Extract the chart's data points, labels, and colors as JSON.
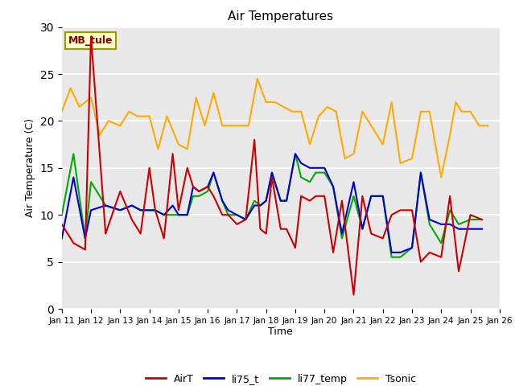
{
  "title": "Air Temperatures",
  "xlabel": "Time",
  "ylabel": "Air Temperature (C)",
  "ylim": [
    0,
    30
  ],
  "yticks": [
    0,
    5,
    10,
    15,
    20,
    25,
    30
  ],
  "annotation": "MB_tule",
  "bg_color": "#e8e8e8",
  "legend_entries": [
    "AirT",
    "li75_t",
    "li77_temp",
    "Tsonic"
  ],
  "legend_colors": [
    "#cc0000",
    "#0000cc",
    "#00aa00",
    "#ffaa00"
  ],
  "x_tick_pos": [
    11,
    12,
    13,
    14,
    15,
    16,
    17,
    18,
    19,
    20,
    21,
    22,
    23,
    24,
    25,
    26
  ],
  "x_labels": [
    "Jan 11",
    "Jan 12",
    "Jan 13",
    "Jan 14",
    "Jan 15",
    "Jan 16",
    "Jan 17",
    "Jan 18",
    "Jan 19",
    "Jan 20",
    "Jan 21",
    "Jan 22",
    "Jan 23",
    "Jan 24",
    "Jan 25",
    "Jan 26"
  ],
  "airt_x": [
    11.0,
    11.4,
    11.8,
    12.0,
    12.5,
    13.0,
    13.4,
    13.7,
    14.0,
    14.2,
    14.5,
    14.8,
    15.0,
    15.3,
    15.5,
    15.7,
    16.0,
    16.2,
    16.5,
    16.7,
    17.0,
    17.3,
    17.6,
    17.8,
    18.0,
    18.2,
    18.5,
    18.7,
    19.0,
    19.2,
    19.5,
    19.7,
    20.0,
    20.3,
    20.6,
    21.0,
    21.3,
    21.6,
    22.0,
    22.3,
    22.6,
    23.0,
    23.3,
    23.6,
    24.0,
    24.3,
    24.6,
    25.0,
    25.4
  ],
  "airt_y": [
    9.0,
    7.0,
    6.3,
    29.0,
    8.0,
    12.5,
    9.5,
    8.0,
    15.0,
    10.5,
    7.5,
    16.5,
    10.5,
    15.0,
    13.0,
    12.5,
    13.0,
    12.0,
    10.0,
    10.0,
    9.0,
    9.5,
    18.0,
    8.5,
    8.0,
    14.0,
    8.5,
    8.5,
    6.5,
    12.0,
    11.5,
    12.0,
    12.0,
    6.0,
    11.5,
    1.5,
    12.0,
    8.0,
    7.5,
    10.0,
    10.5,
    10.5,
    5.0,
    6.0,
    5.5,
    12.0,
    4.0,
    10.0,
    9.5
  ],
  "li75_x": [
    11.0,
    11.4,
    11.8,
    12.0,
    12.5,
    13.0,
    13.4,
    13.7,
    14.0,
    14.2,
    14.5,
    14.8,
    15.0,
    15.3,
    15.5,
    15.7,
    16.0,
    16.2,
    16.5,
    16.7,
    17.0,
    17.3,
    17.6,
    17.8,
    18.0,
    18.2,
    18.5,
    18.7,
    19.0,
    19.2,
    19.5,
    19.7,
    20.0,
    20.3,
    20.6,
    21.0,
    21.3,
    21.6,
    22.0,
    22.3,
    22.6,
    23.0,
    23.3,
    23.6,
    24.0,
    24.3,
    24.6,
    25.0,
    25.4
  ],
  "li75_y": [
    7.5,
    14.0,
    7.5,
    10.5,
    11.0,
    10.5,
    11.0,
    10.5,
    10.5,
    10.5,
    10.0,
    11.0,
    10.0,
    10.0,
    13.0,
    12.5,
    13.0,
    14.5,
    11.5,
    10.5,
    10.0,
    9.5,
    11.0,
    11.0,
    11.5,
    14.5,
    11.5,
    11.5,
    16.5,
    15.5,
    15.0,
    15.0,
    15.0,
    13.0,
    8.0,
    13.5,
    8.5,
    12.0,
    12.0,
    6.0,
    6.0,
    6.5,
    14.5,
    9.5,
    9.0,
    9.0,
    8.5,
    8.5,
    8.5
  ],
  "li77_x": [
    11.0,
    11.4,
    11.8,
    12.0,
    12.5,
    13.0,
    13.4,
    13.7,
    14.0,
    14.2,
    14.5,
    14.8,
    15.0,
    15.3,
    15.5,
    15.7,
    16.0,
    16.2,
    16.5,
    16.7,
    17.0,
    17.3,
    17.6,
    17.8,
    18.0,
    18.2,
    18.5,
    18.7,
    19.0,
    19.2,
    19.5,
    19.7,
    20.0,
    20.3,
    20.6,
    21.0,
    21.3,
    21.6,
    22.0,
    22.3,
    22.6,
    23.0,
    23.3,
    23.6,
    24.0,
    24.3,
    24.6,
    25.0,
    25.4
  ],
  "li77_y": [
    10.0,
    16.5,
    7.5,
    13.5,
    11.0,
    10.5,
    11.0,
    10.5,
    10.5,
    10.5,
    10.0,
    10.0,
    10.0,
    10.0,
    12.0,
    12.0,
    12.5,
    14.5,
    11.5,
    10.0,
    10.0,
    9.5,
    11.5,
    11.0,
    11.5,
    14.5,
    11.5,
    11.5,
    16.5,
    14.0,
    13.5,
    14.5,
    14.5,
    13.0,
    7.5,
    12.0,
    8.5,
    12.0,
    12.0,
    5.5,
    5.5,
    6.5,
    14.5,
    9.0,
    7.0,
    10.5,
    9.0,
    9.5,
    9.5
  ],
  "tsonic_x": [
    11.0,
    11.3,
    11.6,
    12.0,
    12.3,
    12.6,
    13.0,
    13.3,
    13.6,
    14.0,
    14.3,
    14.6,
    15.0,
    15.3,
    15.6,
    15.9,
    16.2,
    16.5,
    16.8,
    17.1,
    17.4,
    17.7,
    18.0,
    18.3,
    18.6,
    18.9,
    19.2,
    19.5,
    19.8,
    20.1,
    20.4,
    20.7,
    21.0,
    21.3,
    21.6,
    22.0,
    22.3,
    22.6,
    23.0,
    23.3,
    23.6,
    24.0,
    24.3,
    24.5,
    24.7,
    25.0,
    25.3,
    25.6
  ],
  "tsonic_y": [
    21.0,
    23.5,
    21.5,
    22.5,
    18.5,
    20.0,
    19.5,
    21.0,
    20.5,
    20.5,
    17.0,
    20.5,
    17.5,
    17.0,
    22.5,
    19.5,
    23.0,
    19.5,
    19.5,
    19.5,
    19.5,
    24.5,
    22.0,
    22.0,
    21.5,
    21.0,
    21.0,
    17.5,
    20.5,
    21.5,
    21.0,
    16.0,
    16.5,
    21.0,
    19.5,
    17.5,
    22.0,
    15.5,
    16.0,
    21.0,
    21.0,
    14.0,
    18.5,
    22.0,
    21.0,
    21.0,
    19.5,
    19.5
  ]
}
